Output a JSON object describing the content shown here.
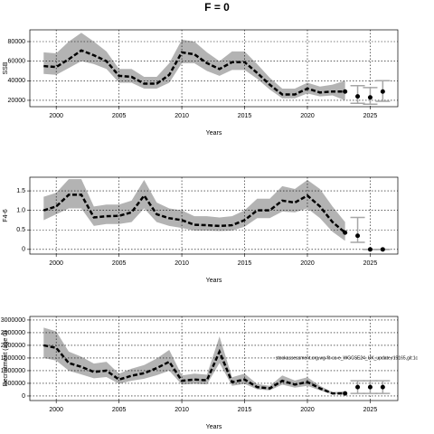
{
  "title": "F = 0",
  "chart_data": [
    {
      "type": "line",
      "xlabel": "Years",
      "ylabel": "SSB",
      "color": "#000000",
      "band_color": "#b3b3b3",
      "grid": true,
      "x": [
        1999,
        2000,
        2001,
        2002,
        2003,
        2004,
        2005,
        2006,
        2007,
        2008,
        2009,
        2010,
        2011,
        2012,
        2013,
        2014,
        2015,
        2016,
        2017,
        2018,
        2019,
        2020,
        2021,
        2022,
        2023
      ],
      "values": [
        55000,
        54000,
        62000,
        71000,
        66000,
        60000,
        45000,
        44000,
        37000,
        37000,
        46000,
        69000,
        67000,
        58000,
        52000,
        59000,
        59000,
        48000,
        36000,
        26000,
        26000,
        32000,
        28000,
        29000,
        29000
      ],
      "lower": [
        47000,
        46000,
        53000,
        60000,
        57000,
        52000,
        38000,
        38000,
        32000,
        32000,
        38000,
        58000,
        58000,
        50000,
        45000,
        51000,
        51000,
        42000,
        31000,
        22000,
        22000,
        27000,
        24000,
        25000,
        20000
      ],
      "upper": [
        69000,
        68000,
        80000,
        89000,
        80000,
        70000,
        52000,
        52000,
        44000,
        44000,
        58000,
        82000,
        80000,
        69000,
        60000,
        70000,
        70000,
        57000,
        43000,
        32000,
        32000,
        38000,
        34000,
        36000,
        40000
      ],
      "projection": {
        "x": [
          2024,
          2025,
          2026
        ],
        "values": [
          24000,
          23000,
          29000
        ],
        "lower": [
          17000,
          16000,
          19000
        ],
        "upper": [
          35000,
          33000,
          40000
        ],
        "color": "#a6a6a6"
      },
      "xlim": [
        1997.9,
        2027.2
      ],
      "xticks": [
        2000,
        2005,
        2010,
        2015,
        2020,
        2025
      ],
      "ylim": [
        13500,
        92000
      ],
      "yticks": [
        20000,
        40000,
        60000,
        80000
      ]
    },
    {
      "type": "line",
      "xlabel": "Years",
      "ylabel": "F4-6",
      "color": "#000000",
      "band_color": "#b3b3b3",
      "grid": true,
      "x": [
        1999,
        2000,
        2001,
        2002,
        2003,
        2004,
        2005,
        2006,
        2007,
        2008,
        2009,
        2010,
        2011,
        2012,
        2013,
        2014,
        2015,
        2016,
        2017,
        2018,
        2019,
        2020,
        2021,
        2022,
        2023
      ],
      "values": [
        1.0,
        1.1,
        1.4,
        1.4,
        0.82,
        0.85,
        0.86,
        0.95,
        1.38,
        0.9,
        0.8,
        0.75,
        0.63,
        0.62,
        0.6,
        0.62,
        0.75,
        1.0,
        1.0,
        1.25,
        1.2,
        1.38,
        1.1,
        0.7,
        0.43
      ],
      "lower": [
        0.75,
        0.9,
        1.05,
        1.05,
        0.6,
        0.65,
        0.65,
        0.7,
        1.05,
        0.7,
        0.6,
        0.55,
        0.48,
        0.48,
        0.47,
        0.48,
        0.58,
        0.8,
        0.8,
        0.97,
        0.95,
        1.05,
        0.8,
        0.45,
        0.22
      ],
      "upper": [
        1.35,
        1.45,
        1.8,
        1.8,
        1.1,
        1.15,
        1.15,
        1.25,
        1.78,
        1.2,
        1.05,
        1.0,
        0.85,
        0.85,
        0.82,
        0.85,
        1.0,
        1.3,
        1.3,
        1.62,
        1.55,
        1.78,
        1.55,
        1.1,
        0.7
      ],
      "projection": {
        "x": [
          2024,
          2025,
          2026
        ],
        "values": [
          0.35,
          0,
          0
        ],
        "lower": [
          0.18,
          0,
          0
        ],
        "upper": [
          0.82,
          0,
          0
        ],
        "color": "#a6a6a6"
      },
      "xlim": [
        1997.9,
        2027.2
      ],
      "xticks": [
        2000,
        2005,
        2010,
        2015,
        2020,
        2025
      ],
      "ylim": [
        -0.12,
        1.85
      ],
      "yticks": [
        0,
        {
          "value": 0.5,
          "label": "0.5"
        },
        {
          "value": 1,
          "label": "1.0"
        },
        {
          "value": 1.5,
          "label": "1.5"
        }
      ]
    },
    {
      "type": "line",
      "xlabel": "Years",
      "ylabel": "Recruitment (age 0)",
      "color": "#000000",
      "band_color": "#b3b3b3",
      "grid": true,
      "annotation": "stockassessment.org,wg-fit-ca-e_WGCSE24_UK_update,r19165,git:1c",
      "x": [
        1999,
        2000,
        2001,
        2002,
        2003,
        2004,
        2005,
        2006,
        2007,
        2008,
        2009,
        2010,
        2011,
        2012,
        2013,
        2014,
        2015,
        2016,
        2017,
        2018,
        2019,
        2020,
        2021,
        2022,
        2023
      ],
      "values": [
        2000000,
        1900000,
        1300000,
        1150000,
        950000,
        1000000,
        650000,
        800000,
        900000,
        1100000,
        1350000,
        600000,
        650000,
        620000,
        1750000,
        550000,
        650000,
        350000,
        300000,
        600000,
        450000,
        550000,
        300000,
        100000,
        100000
      ],
      "lower": [
        1500000,
        1400000,
        1000000,
        850000,
        700000,
        750000,
        480000,
        600000,
        680000,
        820000,
        1000000,
        450000,
        480000,
        460000,
        1300000,
        400000,
        480000,
        260000,
        220000,
        450000,
        330000,
        400000,
        220000,
        70000,
        60000
      ],
      "upper": [
        2700000,
        2550000,
        1750000,
        1550000,
        1280000,
        1350000,
        880000,
        1080000,
        1220000,
        1480000,
        1820000,
        810000,
        880000,
        840000,
        2350000,
        740000,
        880000,
        470000,
        400000,
        810000,
        610000,
        740000,
        400000,
        150000,
        180000
      ],
      "projection": {
        "x": [
          2024,
          2025,
          2026
        ],
        "values": [
          350000,
          350000,
          350000
        ],
        "lower": [
          100000,
          100000,
          100000
        ],
        "upper": [
          600000,
          600000,
          600000
        ],
        "color": "#a6a6a6"
      },
      "xlim": [
        1997.9,
        2027.2
      ],
      "xticks": [
        2000,
        2005,
        2010,
        2015,
        2020,
        2025
      ],
      "ylim": [
        -180000,
        3140000
      ],
      "yticks": [
        0,
        500000,
        1000000,
        1500000,
        2000000,
        2500000,
        3000000
      ]
    }
  ]
}
